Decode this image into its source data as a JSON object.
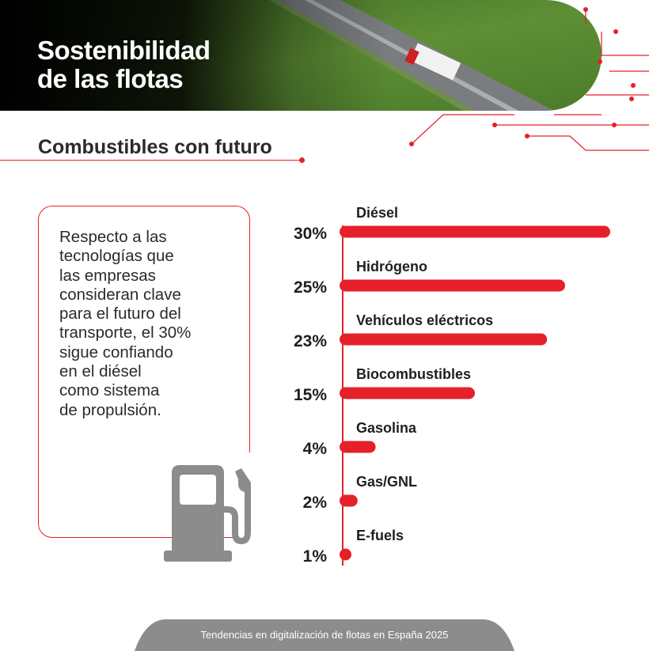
{
  "banner": {
    "title_line1": "Sostenibilidad",
    "title_line2": "de las flotas"
  },
  "section": {
    "title": "Combustibles con futuro"
  },
  "card": {
    "lines": [
      "Respecto a las",
      "tecnologías que",
      "las empresas",
      "consideran clave",
      "para el futuro del",
      "transporte, el 30%",
      "sigue confiando",
      "en el diésel",
      "como sistema",
      "de propulsión."
    ],
    "icon": "fuel-pump-icon"
  },
  "chart_data": {
    "type": "bar",
    "orientation": "horizontal",
    "categories": [
      "Diésel",
      "Hidrógeno",
      "Vehículos eléctricos",
      "Biocombustibles",
      "Gasolina",
      "Gas/GNL",
      "E-fuels"
    ],
    "values": [
      30,
      25,
      23,
      15,
      4,
      2,
      1
    ],
    "value_labels": [
      "30%",
      "25%",
      "23%",
      "15%",
      "4%",
      "2%",
      "1%"
    ],
    "unit": "%",
    "xlim": [
      0,
      30
    ],
    "bar_color": "#e5202a",
    "grid": false
  },
  "colors": {
    "accent": "#e5202a",
    "text": "#2b2b2b",
    "footer_bg": "#8c8c8c",
    "icon_gray": "#8c8c8c"
  },
  "footer": {
    "text": "Tendencias en digitalización de flotas en España 2025"
  }
}
